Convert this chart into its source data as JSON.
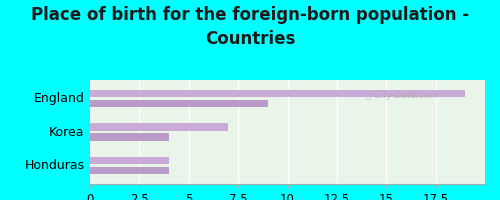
{
  "title": "Place of birth for the foreign-born population -\nCountries",
  "categories": [
    "England",
    "Korea",
    "Honduras"
  ],
  "bars_upper": [
    19.0,
    7.0,
    4.0
  ],
  "bars_lower": [
    9.0,
    4.0,
    4.0
  ],
  "bar_color_upper": "#c9aad8",
  "bar_color_lower": "#b99ac8",
  "background_color": "#00ffff",
  "plot_bg_color": "#eaf5ea",
  "xlim": [
    0,
    20
  ],
  "xticks": [
    0,
    2.5,
    5,
    7.5,
    10,
    12.5,
    15,
    17.5
  ],
  "xtick_labels": [
    "0",
    "2.5",
    "5",
    "7.5",
    "10",
    "12.5",
    "15",
    "17.5"
  ],
  "title_fontsize": 12,
  "label_fontsize": 9,
  "tick_fontsize": 8.5
}
